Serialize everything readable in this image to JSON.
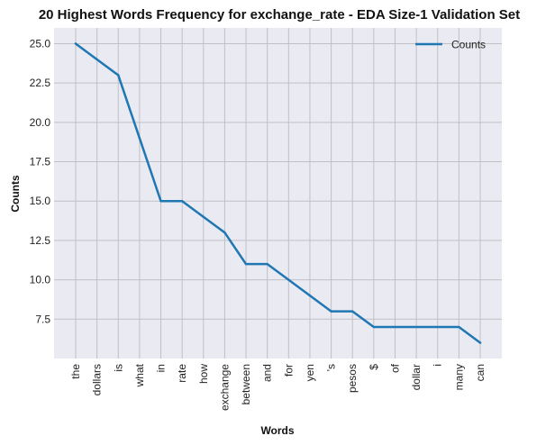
{
  "chart_data": {
    "type": "line",
    "title": "20 Highest Words Frequency for exchange_rate - EDA Size-1 Validation Set",
    "xlabel": "Words",
    "ylabel": "Counts",
    "categories": [
      "the",
      "dollars",
      "is",
      "what",
      "in",
      "rate",
      "how",
      "exchange",
      "between",
      "and",
      "for",
      "yen",
      "'s",
      "pesos",
      "$",
      "of",
      "dollar",
      "i",
      "many",
      "can"
    ],
    "series": [
      {
        "name": "Counts",
        "values": [
          25,
          24,
          23,
          19,
          15,
          15,
          14,
          13,
          11,
          11,
          10,
          9,
          8,
          8,
          7,
          7,
          7,
          7,
          7,
          6
        ]
      }
    ],
    "ylim": [
      5.0,
      26.0
    ],
    "yticks": [
      "7.5",
      "10.0",
      "12.5",
      "15.0",
      "17.5",
      "20.0",
      "22.5",
      "25.0"
    ],
    "grid": true,
    "legend_position": "top-right",
    "colors": {
      "line": "#1f77b4",
      "plot_background": "#eaeaf2",
      "grid": "#c0c0c4"
    }
  }
}
